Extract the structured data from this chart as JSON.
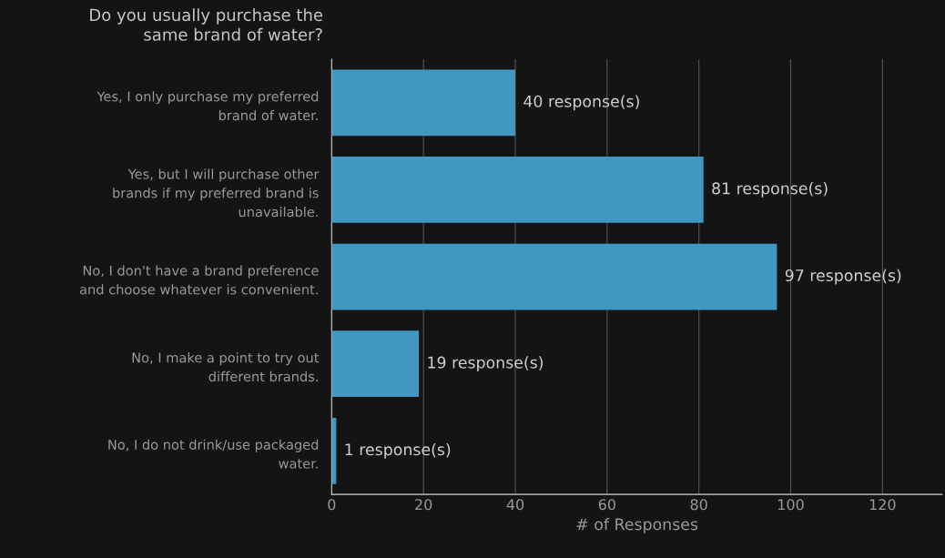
{
  "chart_data": {
    "type": "bar",
    "orientation": "horizontal",
    "title": "Do you usually purchase the same brand of water?",
    "categories": [
      "Yes, I only purchase my preferred brand of water.",
      "Yes, but I will purchase other brands if my preferred brand is unavailable.",
      "No, I don't have a brand preference and choose whatever is convenient.",
      "No, I make a point to try out different brands.",
      "No, I do not drink/use packaged water."
    ],
    "values": [
      40,
      81,
      97,
      19,
      1
    ],
    "value_labels": [
      "40 response(s)",
      "81 response(s)",
      "97 response(s)",
      "19 response(s)",
      "1 response(s)"
    ],
    "color": "#3f97c2",
    "xlabel": "# of Responses",
    "xlim": [
      0,
      133
    ],
    "xticks": [
      0,
      20,
      40,
      60,
      80,
      100,
      120
    ],
    "grid": "x"
  }
}
